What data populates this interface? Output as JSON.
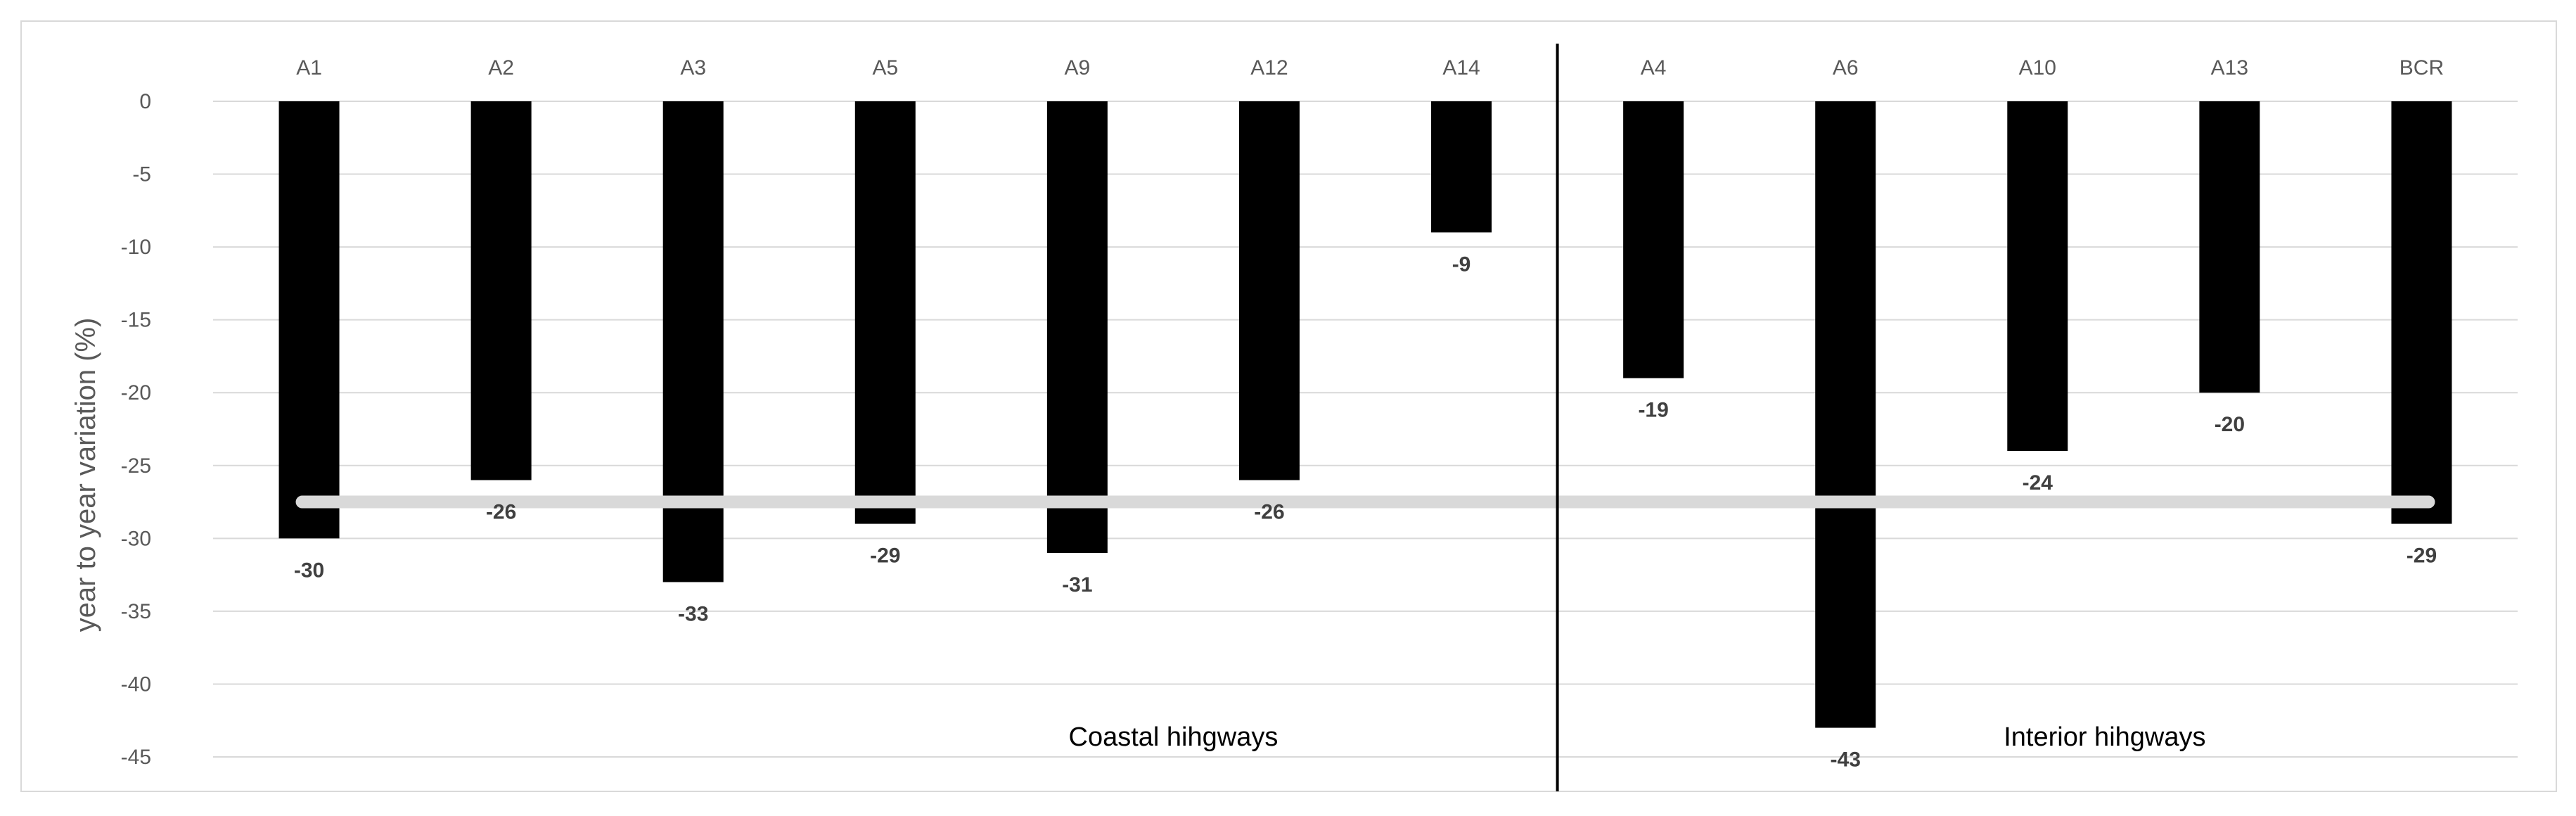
{
  "chart_data": {
    "type": "bar",
    "categories": [
      "A1",
      "A2",
      "A3",
      "A5",
      "A9",
      "A12",
      "A14",
      "A4",
      "A6",
      "A10",
      "A13",
      "BCR"
    ],
    "values": [
      -30,
      -26,
      -33,
      -29,
      -31,
      -26,
      -9,
      -19,
      -43,
      -24,
      -20,
      -29
    ],
    "data_labels": [
      "-30",
      "-26",
      "-33",
      "-29",
      "-31",
      "-26",
      "-9",
      "-19",
      "-43",
      "-24",
      "-20",
      "-29"
    ],
    "category_axis_position": "top",
    "ylabel": "year to year variation (%)",
    "ylim": [
      -45,
      0
    ],
    "yticks": [
      0,
      -5,
      -10,
      -15,
      -20,
      -25,
      -30,
      -35,
      -40,
      -45
    ],
    "ytick_labels": [
      "0",
      "-5",
      "-10",
      "-15",
      "-20",
      "-25",
      "-30",
      "-35",
      "-40",
      "-45"
    ],
    "grid": true,
    "legend": "none",
    "reference_line": {
      "value": -27.5,
      "color": "#d9d9d9",
      "span": "A1 to BCR"
    },
    "groups": [
      {
        "label": "Coastal hihgways",
        "categories": [
          "A1",
          "A2",
          "A3",
          "A5",
          "A9",
          "A12",
          "A14"
        ]
      },
      {
        "label": "Interior hihgways",
        "categories": [
          "A4",
          "A6",
          "A10",
          "A13",
          "BCR"
        ]
      }
    ],
    "separator": "between A14 and A4",
    "colors": {
      "bars": "#000000",
      "grid": "#d9d9d9",
      "reference_line": "#d9d9d9",
      "text": "#595959"
    }
  }
}
